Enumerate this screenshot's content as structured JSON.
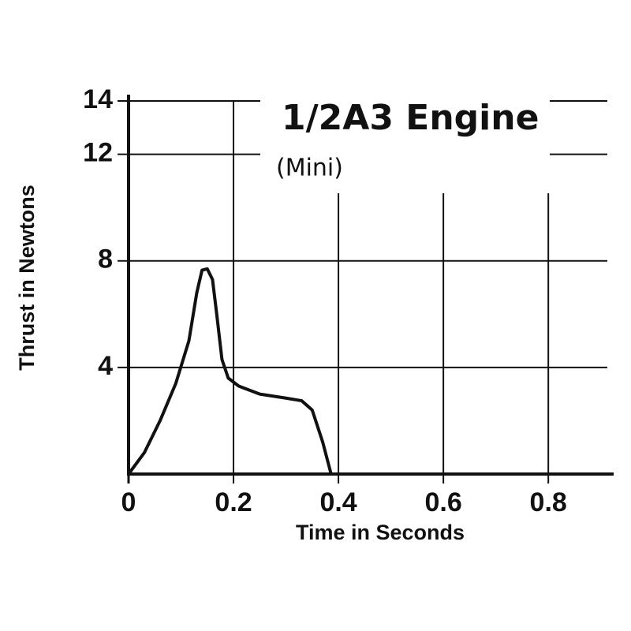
{
  "chart_data": {
    "type": "line",
    "title": "1/2A3 Engine",
    "subtitle": "(Mini)",
    "x_label": "Time in Seconds",
    "y_label": "Thrust in Newtons",
    "xlim": [
      0,
      0.92
    ],
    "ylim": [
      0,
      14
    ],
    "xticks": [
      0,
      0.2,
      0.4,
      0.6,
      0.8
    ],
    "yticks": [
      4,
      8,
      12,
      14
    ],
    "grid": true,
    "color": "#111111",
    "x": [
      0,
      0.03,
      0.06,
      0.09,
      0.115,
      0.13,
      0.14,
      0.15,
      0.16,
      0.168,
      0.178,
      0.19,
      0.21,
      0.25,
      0.3,
      0.33,
      0.35,
      0.37,
      0.386
    ],
    "values": [
      0,
      0.8,
      2.0,
      3.4,
      5.0,
      6.8,
      7.65,
      7.7,
      7.3,
      6.0,
      4.3,
      3.6,
      3.3,
      3.0,
      2.85,
      2.75,
      2.4,
      1.2,
      0
    ]
  }
}
